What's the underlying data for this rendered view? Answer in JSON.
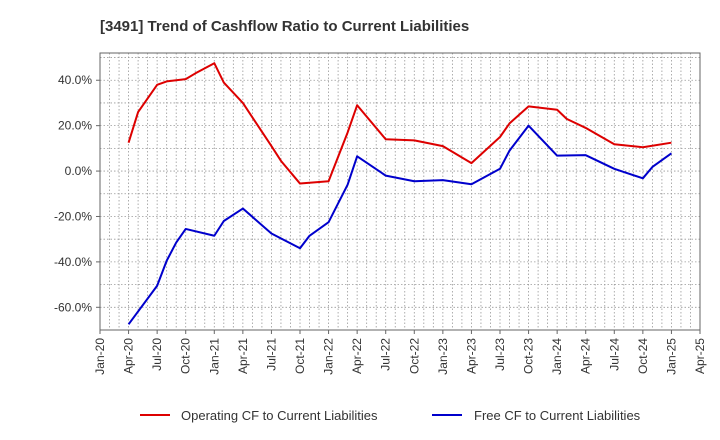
{
  "chart_data": {
    "type": "line",
    "title": "[3491]  Trend of Cashflow Ratio to Current Liabilities",
    "xlabel": "",
    "ylabel": "",
    "ylim": [
      -70,
      52
    ],
    "yticks": [
      "-60.0%",
      "-40.0%",
      "-20.0%",
      "0.0%",
      "20.0%",
      "40.0%"
    ],
    "ytick_values": [
      -60,
      -40,
      -20,
      0,
      20,
      40
    ],
    "xticks": [
      "Jan-20",
      "Apr-20",
      "Jul-20",
      "Oct-20",
      "Jan-21",
      "Apr-21",
      "Jul-21",
      "Oct-21",
      "Jan-22",
      "Apr-22",
      "Jul-22",
      "Oct-22",
      "Jan-23",
      "Apr-23",
      "Jul-23",
      "Oct-23",
      "Jan-24",
      "Apr-24",
      "Jul-24",
      "Oct-24",
      "Jan-25",
      "Apr-25"
    ],
    "grid": true,
    "legend_position": "bottom",
    "series": [
      {
        "name": "Operating CF to Current Liabilities",
        "color": "#dd0000",
        "points": [
          [
            "Apr-20",
            12.5
          ],
          [
            "May-20",
            26
          ],
          [
            "Jul-20",
            38
          ],
          [
            "Aug-20",
            39.5
          ],
          [
            "Oct-20",
            40.5
          ],
          [
            "Nov-20",
            43
          ],
          [
            "Jan-21",
            47.5
          ],
          [
            "Feb-21",
            39
          ],
          [
            "Apr-21",
            30
          ],
          [
            "Jul-21",
            11
          ],
          [
            "Aug-21",
            4.5
          ],
          [
            "Oct-21",
            -5.5
          ],
          [
            "Jan-22",
            -4.5
          ],
          [
            "Mar-22",
            17
          ],
          [
            "Apr-22",
            29
          ],
          [
            "Jul-22",
            14
          ],
          [
            "Oct-22",
            13.5
          ],
          [
            "Jan-23",
            11
          ],
          [
            "Apr-23",
            3.5
          ],
          [
            "Jul-23",
            15
          ],
          [
            "Aug-23",
            21
          ],
          [
            "Oct-23",
            28.5
          ],
          [
            "Jan-24",
            27
          ],
          [
            "Feb-24",
            23
          ],
          [
            "Apr-24",
            19
          ],
          [
            "Jul-24",
            11.8
          ],
          [
            "Oct-24",
            10.5
          ],
          [
            "Jan-25",
            12.5
          ]
        ]
      },
      {
        "name": "Free CF to Current Liabilities",
        "color": "#0000cc",
        "points": [
          [
            "Apr-20",
            -67.5
          ],
          [
            "Jul-20",
            -50.5
          ],
          [
            "Aug-20",
            -39.5
          ],
          [
            "Sep-20",
            -31.5
          ],
          [
            "Oct-20",
            -25.5
          ],
          [
            "Jan-21",
            -28.5
          ],
          [
            "Feb-21",
            -22
          ],
          [
            "Apr-21",
            -16.5
          ],
          [
            "Jul-21",
            -27.5
          ],
          [
            "Oct-21",
            -34
          ],
          [
            "Nov-21",
            -28.5
          ],
          [
            "Jan-22",
            -22.5
          ],
          [
            "Mar-22",
            -6
          ],
          [
            "Apr-22",
            6.5
          ],
          [
            "Jul-22",
            -2
          ],
          [
            "Oct-22",
            -4.5
          ],
          [
            "Jan-23",
            -4
          ],
          [
            "Apr-23",
            -5.8
          ],
          [
            "Jul-23",
            1
          ],
          [
            "Aug-23",
            9
          ],
          [
            "Oct-23",
            20
          ],
          [
            "Jan-24",
            6.8
          ],
          [
            "Apr-24",
            7
          ],
          [
            "Jul-24",
            1
          ],
          [
            "Oct-24",
            -3.2
          ],
          [
            "Nov-24",
            1.8
          ],
          [
            "Jan-25",
            7.8
          ]
        ]
      }
    ]
  }
}
